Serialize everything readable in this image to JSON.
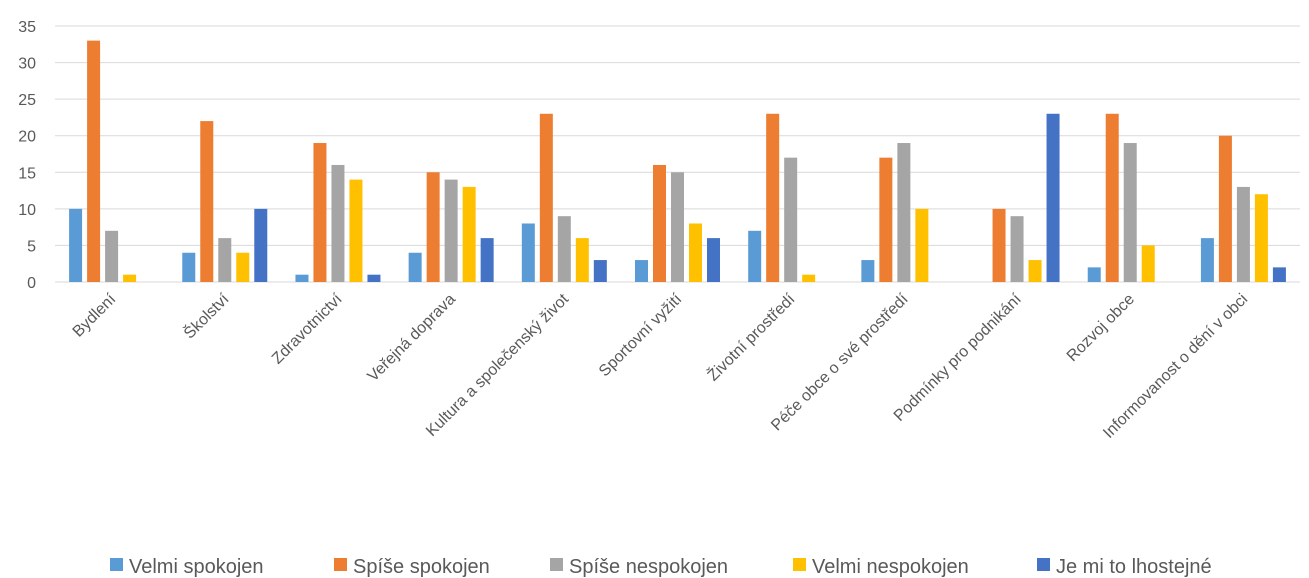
{
  "chart_data": {
    "type": "bar",
    "title": "",
    "xlabel": "",
    "ylabel": "",
    "ylim": [
      0,
      35
    ],
    "yticks": [
      0,
      5,
      10,
      15,
      20,
      25,
      30,
      35
    ],
    "grid": true,
    "legend_position": "bottom",
    "categories": [
      "Bydlení",
      "Školství",
      "Zdravotnictví",
      "Veřejná doprava",
      "Kultura a společenský život",
      "Sportovní vyžití",
      "Životní prostředí",
      "Péče obce o své prostředí",
      "Podmínky pro podnikání",
      "Rozvoj obce",
      "Informovanost o dění v obci"
    ],
    "series": [
      {
        "name": "Velmi spokojen",
        "color": "#5b9bd5",
        "values": [
          10,
          4,
          1,
          4,
          8,
          3,
          7,
          3,
          0,
          2,
          6
        ]
      },
      {
        "name": "Spíše spokojen",
        "color": "#ed7d31",
        "values": [
          33,
          22,
          19,
          15,
          23,
          16,
          23,
          17,
          10,
          23,
          20
        ]
      },
      {
        "name": "Spíše nespokojen",
        "color": "#a5a5a5",
        "values": [
          7,
          6,
          16,
          14,
          9,
          15,
          17,
          19,
          9,
          19,
          13
        ]
      },
      {
        "name": "Velmi nespokojen",
        "color": "#ffc000",
        "values": [
          1,
          4,
          14,
          13,
          6,
          8,
          1,
          10,
          3,
          5,
          12
        ]
      },
      {
        "name": "Je mi to lhostejné",
        "color": "#4472c4",
        "values": [
          0,
          10,
          1,
          6,
          3,
          6,
          0,
          0,
          23,
          0,
          2
        ]
      }
    ]
  }
}
